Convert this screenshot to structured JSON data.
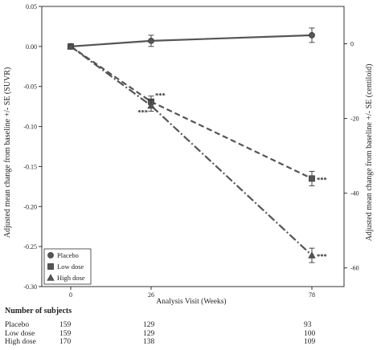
{
  "chart_data": {
    "type": "line",
    "xlabel": "Analysis Visit (Weeks)",
    "ylabel": "Adjusted mean change from baseline +/- SE (SUVR)",
    "y2label": "Adjusted mean change from baseline +/- SE (centiloid)",
    "x": [
      0,
      26,
      78
    ],
    "x_ticks": [
      "0",
      "26",
      "78"
    ],
    "ylim": [
      -0.3,
      0.05
    ],
    "y_ticks": [
      "0.05",
      "0.00",
      "-0.05",
      "-0.10",
      "-0.15",
      "-0.20",
      "-0.25",
      "-0.30"
    ],
    "y2lim": [
      -65,
      10
    ],
    "y2_ticks": [
      "0",
      "-20",
      "-40",
      "-60"
    ],
    "grid": false,
    "legend_position": "bottom-left",
    "series": [
      {
        "name": "Placebo",
        "marker": "circle",
        "line_style": "solid",
        "color": "#555555",
        "values": [
          0.0,
          0.007,
          0.014
        ],
        "se": [
          0,
          0.007,
          0.009
        ],
        "annotations": [
          "",
          "",
          ""
        ]
      },
      {
        "name": "Low dose",
        "marker": "square",
        "line_style": "dashed",
        "color": "#555555",
        "values": [
          0.0,
          -0.069,
          -0.165
        ],
        "se": [
          0,
          0.007,
          0.009
        ],
        "annotations": [
          "",
          "***",
          "***"
        ]
      },
      {
        "name": "High dose",
        "marker": "triangle",
        "line_style": "dashdot",
        "color": "#555555",
        "values": [
          0.0,
          -0.074,
          -0.261
        ],
        "se": [
          0,
          0.007,
          0.009
        ],
        "annotations": [
          "",
          "***",
          "***"
        ]
      }
    ]
  },
  "subjects_table": {
    "title": "Number of subjects",
    "rows": [
      {
        "label": "Placebo",
        "counts": [
          "159",
          "129",
          "93"
        ]
      },
      {
        "label": "Low dose",
        "counts": [
          "159",
          "129",
          "100"
        ]
      },
      {
        "label": "High dose",
        "counts": [
          "170",
          "138",
          "109"
        ]
      }
    ]
  }
}
